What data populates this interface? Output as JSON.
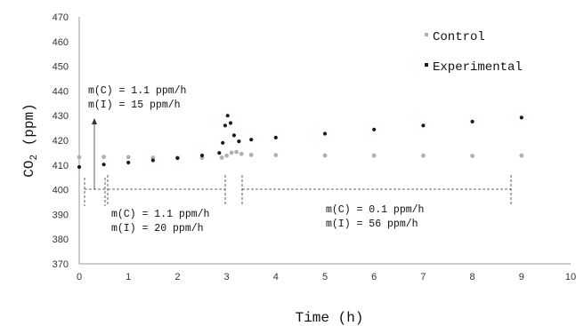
{
  "chart_data": {
    "type": "scatter",
    "xlabel": "Time (h)",
    "ylabel_main": "CO",
    "ylabel_sub": "2",
    "ylabel_unit": " (ppm)",
    "xlim": [
      0,
      10
    ],
    "ylim": [
      370,
      470
    ],
    "x_ticks": [
      "0",
      "1",
      "2",
      "3",
      "4",
      "5",
      "6",
      "7",
      "8",
      "9",
      "10"
    ],
    "y_ticks": [
      "370",
      "380",
      "390",
      "400",
      "410",
      "420",
      "430",
      "440",
      "450",
      "460",
      "470"
    ],
    "legend_position": "top-right",
    "series": [
      {
        "name": "Control",
        "color": "#b0b0b0",
        "points": [
          [
            0.0,
            413.2
          ],
          [
            0.5,
            413.3
          ],
          [
            1.0,
            413.2
          ],
          [
            1.5,
            413.0
          ],
          [
            2.0,
            412.9
          ],
          [
            2.5,
            412.9
          ],
          [
            2.9,
            413.0
          ],
          [
            3.0,
            413.8
          ],
          [
            3.1,
            415.0
          ],
          [
            3.2,
            415.3
          ],
          [
            3.3,
            414.5
          ],
          [
            3.5,
            414.1
          ],
          [
            4.0,
            414.0
          ],
          [
            5.0,
            413.9
          ],
          [
            6.0,
            413.8
          ],
          [
            7.0,
            413.8
          ],
          [
            8.0,
            413.7
          ],
          [
            9.0,
            413.8
          ]
        ]
      },
      {
        "name": "Experimental",
        "color": "#2a1412",
        "points": [
          [
            0.0,
            409.2
          ],
          [
            0.5,
            410.2
          ],
          [
            1.0,
            411.0
          ],
          [
            1.5,
            411.9
          ],
          [
            2.0,
            412.8
          ],
          [
            2.5,
            413.9
          ],
          [
            2.85,
            414.9
          ],
          [
            2.92,
            419.0
          ],
          [
            2.97,
            426.0
          ],
          [
            3.02,
            430.0
          ],
          [
            3.08,
            427.0
          ],
          [
            3.15,
            422.0
          ],
          [
            3.25,
            419.6
          ],
          [
            3.5,
            420.3
          ],
          [
            4.0,
            421.1
          ],
          [
            5.0,
            422.7
          ],
          [
            6.0,
            424.4
          ],
          [
            7.0,
            426.0
          ],
          [
            8.0,
            427.6
          ],
          [
            9.0,
            429.2
          ]
        ]
      }
    ],
    "annotations": [
      {
        "lines": [
          "m(C) = 1.1 ppm/h",
          "m(I) = 15 ppm/h"
        ]
      },
      {
        "lines": [
          "m(C) = 1.1 ppm/h",
          "m(I) = 20 ppm/h"
        ]
      },
      {
        "lines": [
          "m(C) = 0.1 ppm/h",
          "m(I) = 56 ppm/h"
        ]
      }
    ]
  }
}
